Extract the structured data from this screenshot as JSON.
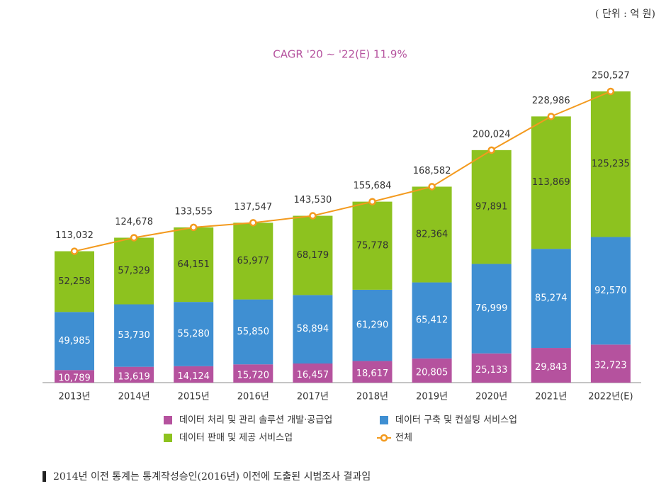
{
  "chart_data": {
    "type": "bar",
    "stacked": true,
    "unit_note": "( 단위 : 억 원)",
    "title": "CAGR '20 ~ '22(E)  11.9%",
    "categories": [
      "2013년",
      "2014년",
      "2015년",
      "2016년",
      "2017년",
      "2018년",
      "2019년",
      "2020년",
      "2021년",
      "2022년(E)"
    ],
    "series": [
      {
        "name": "데이터 처리 및 관리 솔루션 개발·공급업",
        "color": "#b5529e",
        "values": [
          10789,
          13619,
          14124,
          15720,
          16457,
          18617,
          20805,
          25133,
          29843,
          32723
        ],
        "value_labels": [
          "10,789",
          "13,619",
          "14,124",
          "15,720",
          "16,457",
          "18,617",
          "20,805",
          "25,133",
          "29,843",
          "32,723"
        ]
      },
      {
        "name": "데이터 구축 및 컨설팅 서비스업",
        "color": "#3f8fd2",
        "values": [
          49985,
          53730,
          55280,
          55850,
          58894,
          61290,
          65412,
          76999,
          85274,
          92570
        ],
        "value_labels": [
          "49,985",
          "53,730",
          "55,280",
          "55,850",
          "58,894",
          "61,290",
          "65,412",
          "76,999",
          "85,274",
          "92,570"
        ]
      },
      {
        "name": "데이터 판매 및 제공 서비스업",
        "color": "#8dc21f",
        "values": [
          52258,
          57329,
          64151,
          65977,
          68179,
          75778,
          82364,
          97891,
          113869,
          125235
        ],
        "value_labels": [
          "52,258",
          "57,329",
          "64,151",
          "65,977",
          "68,179",
          "75,778",
          "82,364",
          "97,891",
          "113,869",
          "125,235"
        ]
      },
      {
        "name": "전체",
        "type": "line",
        "color": "#f39a1e",
        "values": [
          113032,
          124678,
          133555,
          137547,
          143530,
          155684,
          168582,
          200024,
          228986,
          250527
        ],
        "value_labels": [
          "113,032",
          "124,678",
          "133,555",
          "137,547",
          "143,530",
          "155,684",
          "168,582",
          "200,024",
          "228,986",
          "250,527"
        ]
      }
    ],
    "footnote": "2014년 이전 통계는 통계작성승인(2016년) 이전에 도출된 시범조사 결과임"
  }
}
